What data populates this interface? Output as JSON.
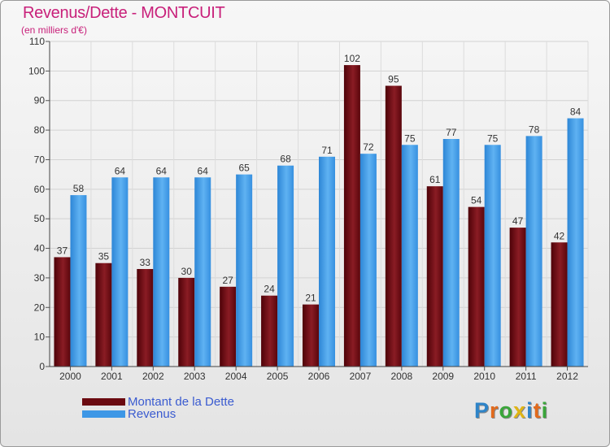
{
  "header": {
    "title": "Revenus/Dette - MONTCUIT",
    "subtitle": "(en milliers d'€)"
  },
  "logo": {
    "text": "Proxiti",
    "letters": [
      "P",
      "r",
      "o",
      "x",
      "i",
      "t",
      "i"
    ],
    "colors": [
      "#2e84c8",
      "#e26a1c",
      "#3aa63a",
      "#e0b414",
      "#2e84c8",
      "#e26a1c",
      "#3aa63a"
    ]
  },
  "legend": {
    "items": [
      {
        "label": "Montant de la Dette",
        "color": "#6b0a10"
      },
      {
        "label": "Revenus",
        "color": "#3d97e6"
      }
    ]
  },
  "chart_data": {
    "type": "bar",
    "title": "Revenus/Dette - MONTCUIT",
    "subtitle": "(en milliers d'€)",
    "categories": [
      "2000",
      "2001",
      "2002",
      "2003",
      "2004",
      "2005",
      "2006",
      "2007",
      "2008",
      "2009",
      "2010",
      "2011",
      "2012"
    ],
    "series": [
      {
        "name": "Montant de la Dette",
        "color": "#6b0a10",
        "values": [
          37,
          35,
          33,
          30,
          27,
          24,
          21,
          102,
          95,
          61,
          54,
          47,
          42
        ]
      },
      {
        "name": "Revenus",
        "color": "#3d97e6",
        "values": [
          58,
          64,
          64,
          64,
          65,
          68,
          71,
          72,
          75,
          77,
          75,
          78,
          84
        ]
      }
    ],
    "ylim": [
      0,
      110
    ],
    "yticks": [
      0,
      10,
      20,
      30,
      40,
      50,
      60,
      70,
      80,
      90,
      100,
      110
    ],
    "grid": true,
    "legend_position": "bottom-left"
  }
}
